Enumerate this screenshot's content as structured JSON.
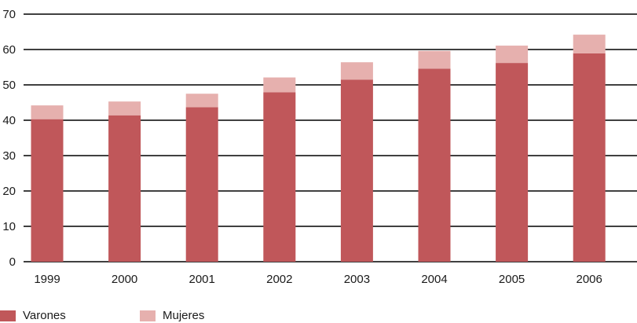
{
  "chart_data": {
    "type": "bar",
    "stacked": true,
    "categories": [
      "1999",
      "2000",
      "2001",
      "2002",
      "2003",
      "2004",
      "2005",
      "2006"
    ],
    "series": [
      {
        "name": "Varones",
        "values": [
          40.3,
          41.4,
          43.7,
          47.9,
          51.5,
          54.6,
          56.2,
          58.9
        ]
      },
      {
        "name": "Mujeres",
        "values": [
          3.9,
          3.9,
          3.8,
          4.2,
          4.9,
          5.0,
          4.9,
          5.3
        ]
      }
    ],
    "ylim": [
      0,
      70
    ],
    "yticks": [
      0,
      10,
      20,
      30,
      40,
      50,
      60,
      70
    ],
    "grid": true,
    "legend_position": "bottom-left",
    "colors": {
      "Varones": "#c0575a",
      "Mujeres": "#e6b0ae",
      "grid": "#000000"
    }
  }
}
